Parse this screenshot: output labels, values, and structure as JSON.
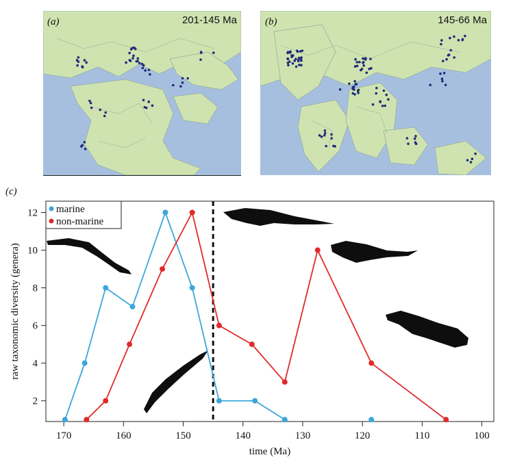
{
  "panels": {
    "a": {
      "letter": "(a)",
      "title": "201-145 Ma"
    },
    "b": {
      "letter": "(b)",
      "title": "145-66 Ma"
    },
    "c": {
      "letter": "(c)"
    }
  },
  "colors": {
    "ocean": "#a7bfdf",
    "land": "#cfe3b0",
    "occurrence": "#1f2a7a",
    "marine": "#3aa7d9",
    "non_marine": "#e02b2b",
    "boundary": "#111111"
  },
  "chart_data": {
    "type": "line",
    "title": "",
    "xlabel": "time (Ma)",
    "ylabel": "raw taxonomic diversity (genera)",
    "xlim": [
      173,
      98
    ],
    "ylim": [
      0.9,
      12.6
    ],
    "x_reversed": true,
    "xticks": [
      170,
      160,
      150,
      140,
      130,
      120,
      110,
      100
    ],
    "yticks": [
      2,
      4,
      6,
      8,
      10,
      12
    ],
    "legend_position": "top-left",
    "boundary_line": {
      "x": 145,
      "style": "dashed"
    },
    "series": [
      {
        "name": "marine",
        "color": "#3aa7d9",
        "points": [
          [
            169.8,
            1
          ],
          [
            166.5,
            4
          ],
          [
            163,
            8
          ],
          [
            158.5,
            7
          ],
          [
            153,
            12
          ],
          [
            148.5,
            8
          ],
          [
            144,
            2
          ],
          [
            138,
            2
          ],
          [
            133,
            1
          ]
        ],
        "isolated_points": [
          [
            118.5,
            1
          ]
        ]
      },
      {
        "name": "non-marine",
        "color": "#e02b2b",
        "points": [
          [
            166.2,
            1
          ],
          [
            163,
            2
          ],
          [
            159,
            5
          ],
          [
            153.5,
            9
          ],
          [
            148.5,
            12
          ],
          [
            144,
            6
          ],
          [
            138.5,
            5
          ],
          [
            133,
            3
          ],
          [
            127.5,
            10
          ],
          [
            118.5,
            4
          ],
          [
            106,
            1
          ]
        ],
        "isolated_points": []
      }
    ]
  }
}
